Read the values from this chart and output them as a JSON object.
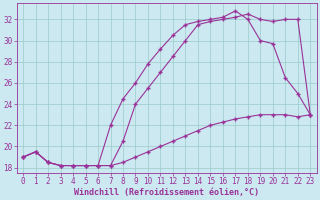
{
  "xlabel": "Windchill (Refroidissement éolien,°C)",
  "bg_color": "#cce8f0",
  "line_color": "#993399",
  "grid_color": "#99cccc",
  "xlim": [
    -0.5,
    23.5
  ],
  "ylim": [
    17.5,
    33.5
  ],
  "yticks": [
    18,
    20,
    22,
    24,
    26,
    28,
    30,
    32
  ],
  "xticks": [
    0,
    1,
    2,
    3,
    4,
    5,
    6,
    7,
    8,
    9,
    10,
    11,
    12,
    13,
    14,
    15,
    16,
    17,
    18,
    19,
    20,
    21,
    22,
    23
  ],
  "line1_x": [
    0,
    1,
    2,
    3,
    4,
    5,
    6,
    7,
    8,
    9,
    10,
    11,
    12,
    13,
    14,
    15,
    16,
    17,
    18,
    19,
    20,
    21,
    22,
    23
  ],
  "line1_y": [
    19.0,
    19.5,
    18.5,
    18.2,
    18.2,
    18.2,
    18.2,
    18.2,
    18.5,
    19.0,
    19.5,
    20.0,
    20.5,
    21.0,
    21.5,
    22.0,
    22.3,
    22.6,
    22.8,
    23.0,
    23.0,
    23.0,
    22.8,
    23.0
  ],
  "line2_x": [
    0,
    1,
    2,
    3,
    4,
    5,
    6,
    7,
    8,
    9,
    10,
    11,
    12,
    13,
    14,
    15,
    16,
    17,
    18,
    19,
    20,
    21,
    22,
    23
  ],
  "line2_y": [
    19.0,
    19.5,
    18.5,
    18.2,
    18.2,
    18.2,
    18.2,
    22.0,
    24.5,
    26.0,
    27.8,
    29.2,
    30.5,
    31.5,
    31.8,
    32.0,
    32.2,
    32.8,
    32.0,
    30.0,
    29.7,
    26.5,
    25.0,
    23.0
  ],
  "line3_x": [
    0,
    1,
    2,
    3,
    4,
    5,
    6,
    7,
    8,
    9,
    10,
    11,
    12,
    13,
    14,
    15,
    16,
    17,
    18,
    19,
    20,
    21,
    22,
    23
  ],
  "line3_y": [
    19.0,
    19.5,
    18.5,
    18.2,
    18.2,
    18.2,
    18.2,
    18.2,
    20.5,
    24.0,
    25.5,
    27.0,
    28.5,
    30.0,
    31.5,
    31.8,
    32.0,
    32.2,
    32.5,
    32.0,
    31.8,
    32.0,
    32.0,
    23.0
  ],
  "marker": "+",
  "markersize": 3,
  "linewidth": 0.8,
  "xlabel_fontsize": 6,
  "tick_fontsize": 5.5
}
